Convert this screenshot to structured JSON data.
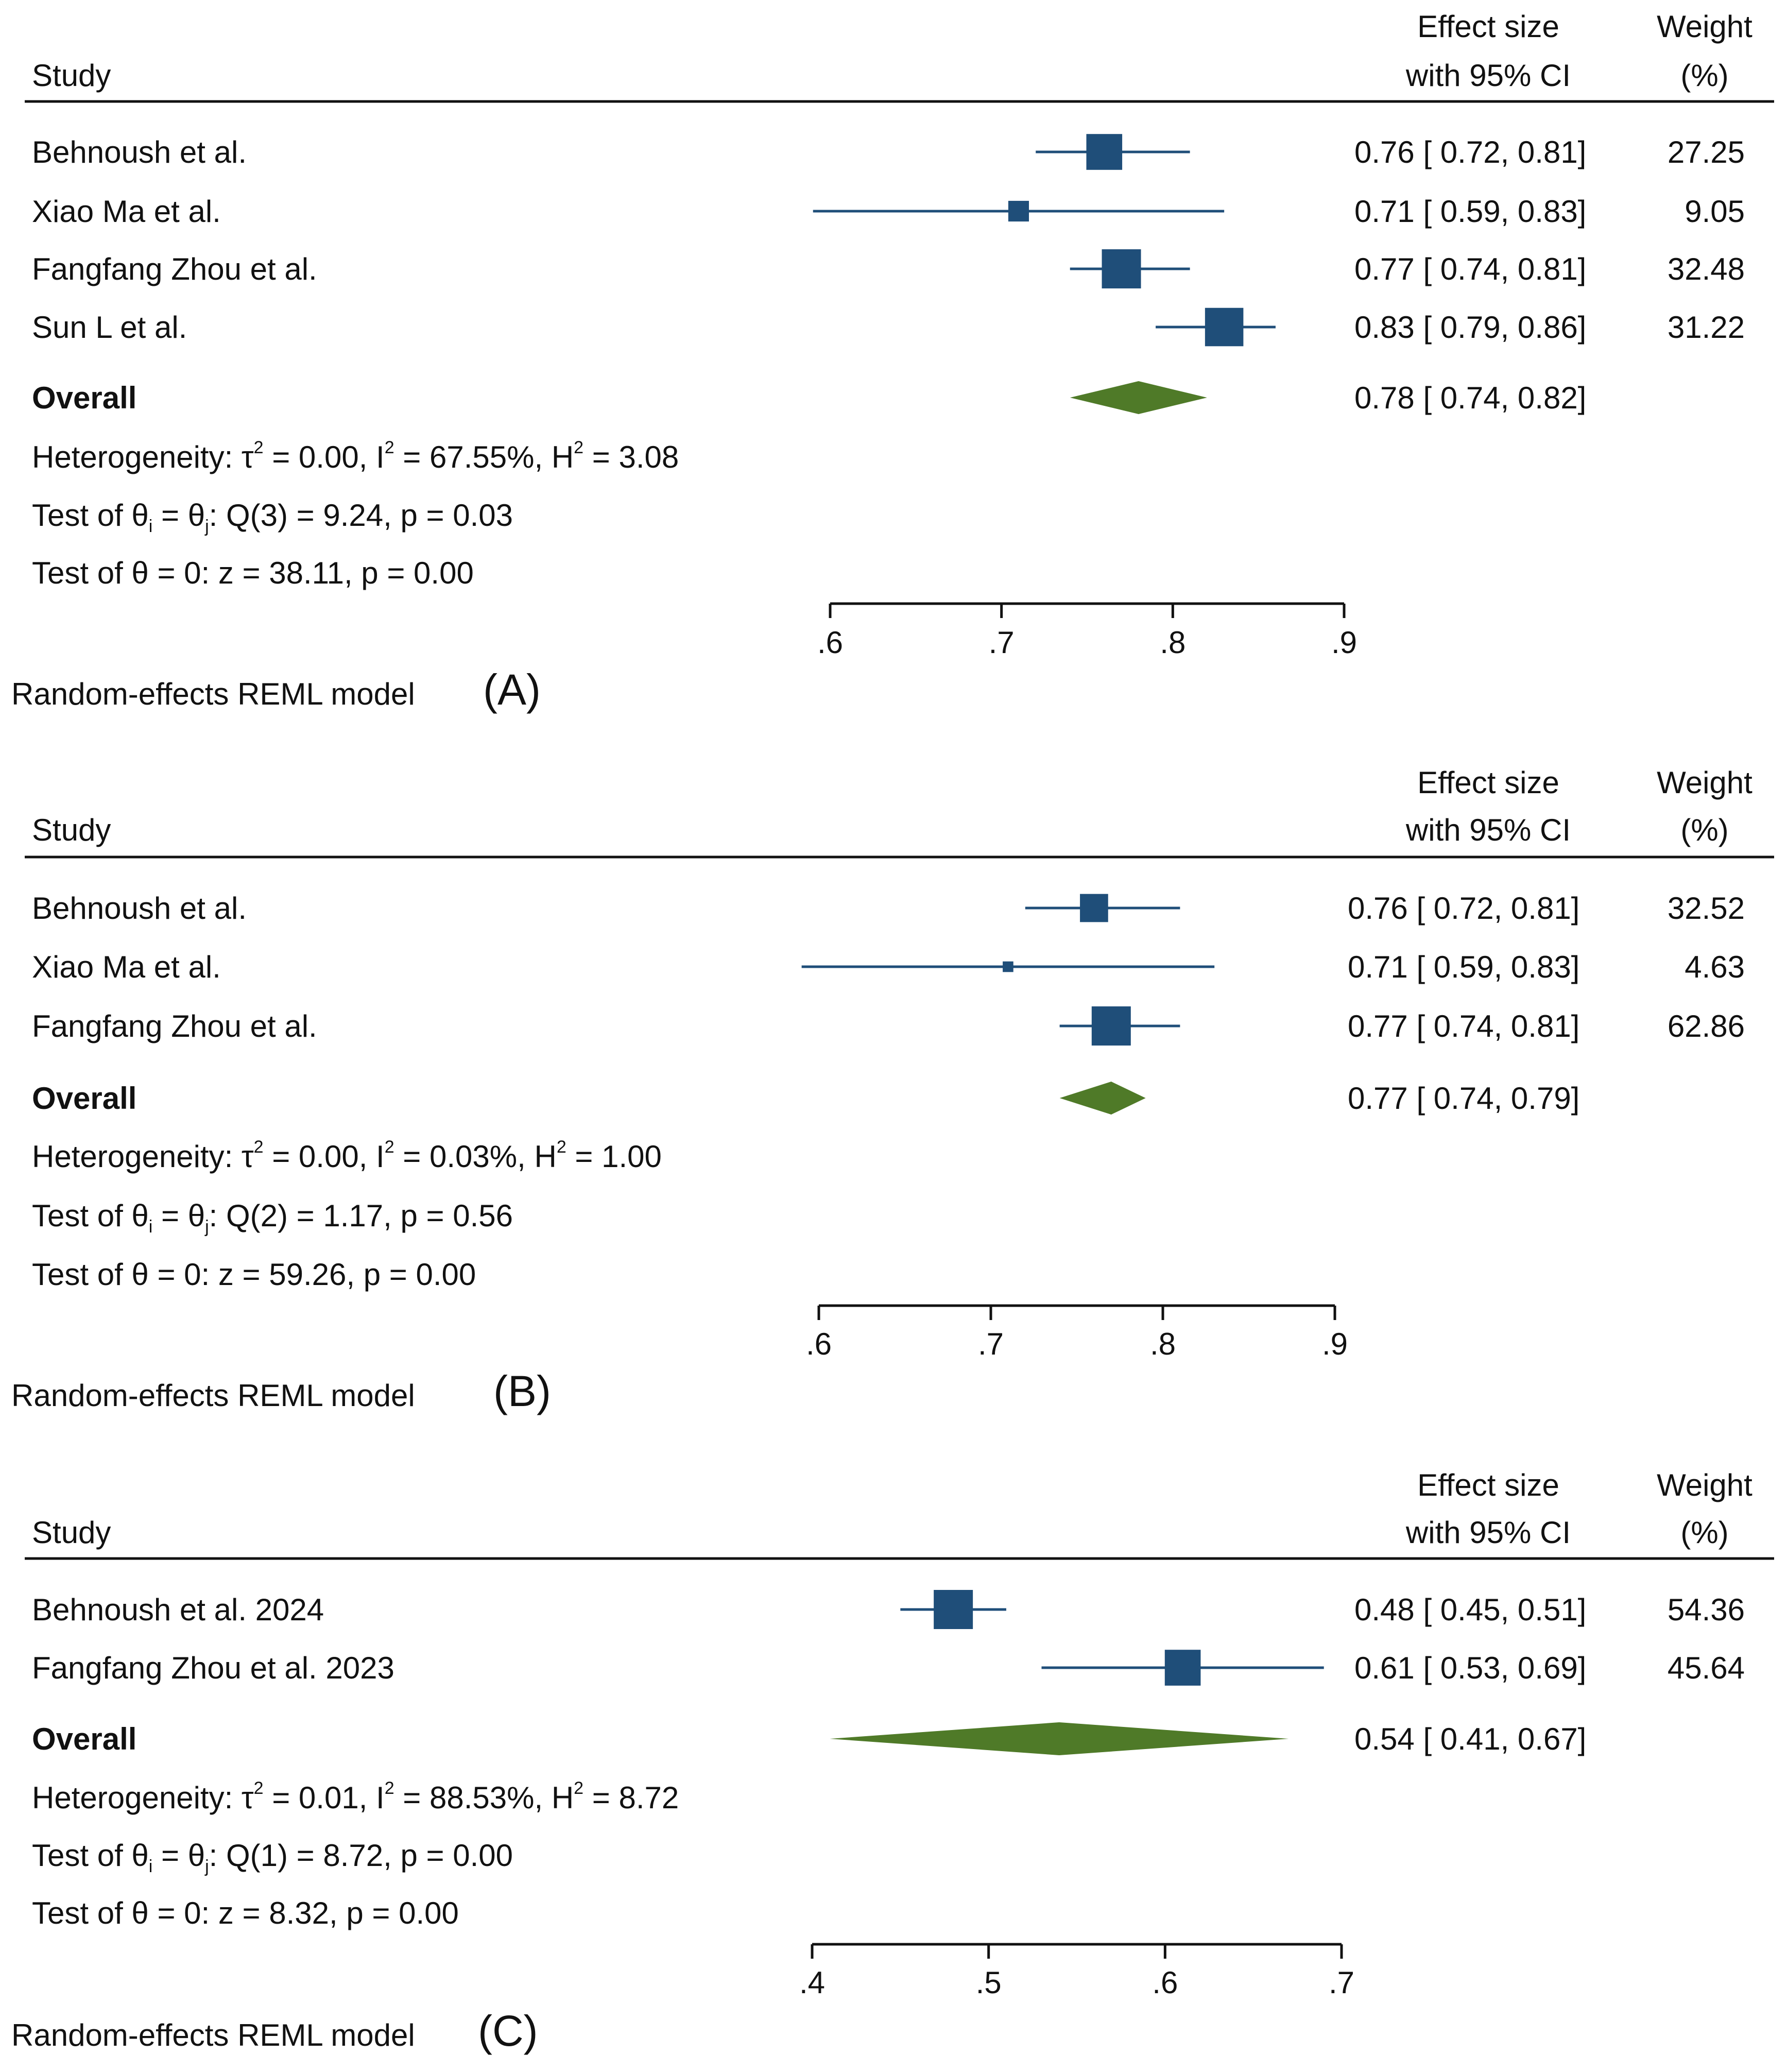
{
  "colors": {
    "square": "#1f4e79",
    "diamond": "#4f7a28",
    "line": "#111111",
    "ci": "#1f4e79"
  },
  "chart_data": [
    {
      "type": "forest",
      "panel": "(A)",
      "model_label": "Random-effects REML model",
      "header": {
        "study": "Study",
        "effect_line1": "Effect size",
        "effect_line2": "with 95% CI",
        "weight_line1": "Weight",
        "weight_line2": "(%)"
      },
      "studies": [
        {
          "name": "Behnoush et al.",
          "effect": 0.76,
          "lower": 0.72,
          "upper": 0.81,
          "ci_text": "0.76 [ 0.72,  0.81]",
          "weight": 27.25,
          "weight_text": "27.25"
        },
        {
          "name": "Xiao Ma et al.",
          "effect": 0.71,
          "lower": 0.59,
          "upper": 0.83,
          "ci_text": "0.71 [ 0.59,  0.83]",
          "weight": 9.05,
          "weight_text": "9.05"
        },
        {
          "name": "Fangfang Zhou et al.",
          "effect": 0.77,
          "lower": 0.74,
          "upper": 0.81,
          "ci_text": "0.77 [ 0.74,  0.81]",
          "weight": 32.48,
          "weight_text": "32.48"
        },
        {
          "name": "Sun L et al.",
          "effect": 0.83,
          "lower": 0.79,
          "upper": 0.86,
          "ci_text": "0.83 [ 0.79,  0.86]",
          "weight": 31.22,
          "weight_text": "31.22"
        }
      ],
      "overall": {
        "label": "Overall",
        "effect": 0.78,
        "lower": 0.74,
        "upper": 0.82,
        "ci_text": "0.78 [ 0.74,  0.82]"
      },
      "heterogeneity": {
        "prefix": "Heterogeneity: τ",
        "tau2": " = 0.00, I",
        "i2": " = 67.55%, H",
        "h2": " = 3.08"
      },
      "test_q": {
        "prefix": "Test of θ",
        "mid": " = θ",
        "rest": ": Q(3) = 9.24, p = 0.03"
      },
      "test_z": "Test of θ = 0: z = 38.11, p = 0.00",
      "xlim": [
        0.6,
        0.9
      ],
      "ticks": [
        0.6,
        0.7,
        0.8,
        0.9
      ],
      "tick_labels": [
        ".6",
        ".7",
        ".8",
        ".9"
      ]
    },
    {
      "type": "forest",
      "panel": "(B)",
      "model_label": "Random-effects REML model",
      "header": {
        "study": "Study",
        "effect_line1": "Effect size",
        "effect_line2": "with 95% CI",
        "weight_line1": "Weight",
        "weight_line2": "(%)"
      },
      "studies": [
        {
          "name": "Behnoush et al.",
          "effect": 0.76,
          "lower": 0.72,
          "upper": 0.81,
          "ci_text": "0.76 [ 0.72,  0.81]",
          "weight": 32.52,
          "weight_text": "32.52"
        },
        {
          "name": "Xiao Ma et al.",
          "effect": 0.71,
          "lower": 0.59,
          "upper": 0.83,
          "ci_text": "0.71 [ 0.59,  0.83]",
          "weight": 4.63,
          "weight_text": "4.63"
        },
        {
          "name": "Fangfang Zhou et al.",
          "effect": 0.77,
          "lower": 0.74,
          "upper": 0.81,
          "ci_text": "0.77 [ 0.74,  0.81]",
          "weight": 62.86,
          "weight_text": "62.86"
        }
      ],
      "overall": {
        "label": "Overall",
        "effect": 0.77,
        "lower": 0.74,
        "upper": 0.79,
        "ci_text": "0.77 [ 0.74,  0.79]"
      },
      "heterogeneity": {
        "prefix": "Heterogeneity: τ",
        "tau2": " = 0.00, I",
        "i2": " = 0.03%, H",
        "h2": " = 1.00"
      },
      "test_q": {
        "prefix": "Test of θ",
        "mid": " = θ",
        "rest": ": Q(2) = 1.17, p = 0.56"
      },
      "test_z": "Test of θ = 0: z = 59.26, p = 0.00",
      "xlim": [
        0.6,
        0.9
      ],
      "ticks": [
        0.6,
        0.7,
        0.8,
        0.9
      ],
      "tick_labels": [
        ".6",
        ".7",
        ".8",
        ".9"
      ]
    },
    {
      "type": "forest",
      "panel": "(C)",
      "model_label": "Random-effects REML model",
      "header": {
        "study": "Study",
        "effect_line1": "Effect size",
        "effect_line2": "with 95% CI",
        "weight_line1": "Weight",
        "weight_line2": "(%)"
      },
      "studies": [
        {
          "name": "Behnoush et al. 2024",
          "effect": 0.48,
          "lower": 0.45,
          "upper": 0.51,
          "ci_text": "0.48 [ 0.45,  0.51]",
          "weight": 54.36,
          "weight_text": "54.36"
        },
        {
          "name": "Fangfang Zhou et al. 2023",
          "effect": 0.61,
          "lower": 0.53,
          "upper": 0.69,
          "ci_text": "0.61 [ 0.53,  0.69]",
          "weight": 45.64,
          "weight_text": "45.64"
        }
      ],
      "overall": {
        "label": "Overall",
        "effect": 0.54,
        "lower": 0.41,
        "upper": 0.67,
        "ci_text": "0.54 [ 0.41,  0.67]"
      },
      "heterogeneity": {
        "prefix": "Heterogeneity: τ",
        "tau2": " = 0.01, I",
        "i2": " = 88.53%, H",
        "h2": " = 8.72"
      },
      "test_q": {
        "prefix": "Test of θ",
        "mid": " = θ",
        "rest": ": Q(1) = 8.72, p = 0.00"
      },
      "test_z": "Test of θ = 0: z = 8.32, p = 0.00",
      "xlim": [
        0.4,
        0.7
      ],
      "ticks": [
        0.4,
        0.5,
        0.6,
        0.7
      ],
      "tick_labels": [
        ".4",
        ".5",
        ".6",
        ".7"
      ]
    }
  ]
}
